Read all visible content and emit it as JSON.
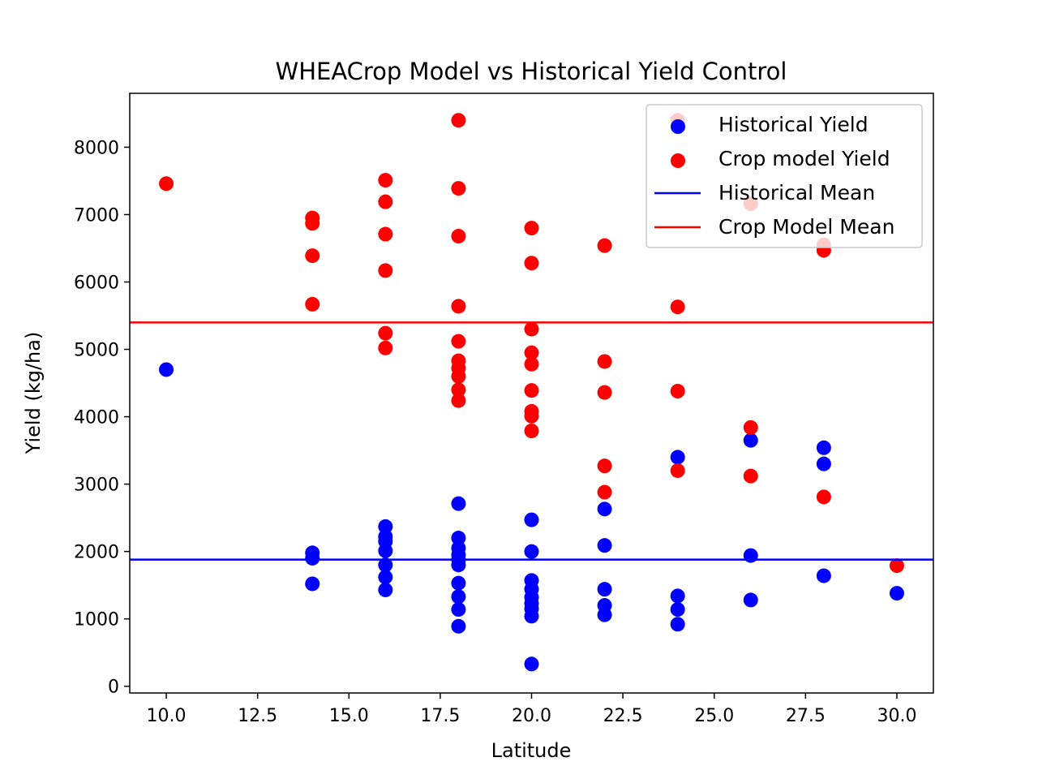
{
  "chart_data": {
    "type": "scatter",
    "title": "WHEACrop Model vs Historical Yield Control",
    "xlabel": "Latitude",
    "ylabel": "Yield (kg/ha)",
    "xlim": [
      9.0,
      31.0
    ],
    "ylim": [
      -100,
      8800
    ],
    "xticks": [
      10.0,
      12.5,
      15.0,
      17.5,
      20.0,
      22.5,
      25.0,
      27.5,
      30.0
    ],
    "xtick_labels": [
      "10.0",
      "12.5",
      "15.0",
      "17.5",
      "20.0",
      "22.5",
      "25.0",
      "27.5",
      "30.0"
    ],
    "yticks": [
      0,
      1000,
      2000,
      3000,
      4000,
      5000,
      6000,
      7000,
      8000
    ],
    "ytick_labels": [
      "0",
      "1000",
      "2000",
      "3000",
      "4000",
      "5000",
      "6000",
      "7000",
      "8000"
    ],
    "grid": false,
    "legend_position": "top-right",
    "series": [
      {
        "name": "Historical Yield",
        "kind": "scatter",
        "color": "#0000ff",
        "points": [
          [
            10,
            4700
          ],
          [
            14,
            1980
          ],
          [
            14,
            1900
          ],
          [
            14,
            1520
          ],
          [
            16,
            2370
          ],
          [
            16,
            2220
          ],
          [
            16,
            2150
          ],
          [
            16,
            2010
          ],
          [
            16,
            1800
          ],
          [
            16,
            1620
          ],
          [
            16,
            1430
          ],
          [
            18,
            2710
          ],
          [
            18,
            2200
          ],
          [
            18,
            2050
          ],
          [
            18,
            1950
          ],
          [
            18,
            1880
          ],
          [
            18,
            1800
          ],
          [
            18,
            1530
          ],
          [
            18,
            1330
          ],
          [
            18,
            1140
          ],
          [
            18,
            890
          ],
          [
            20,
            2470
          ],
          [
            20,
            2000
          ],
          [
            20,
            1570
          ],
          [
            20,
            1440
          ],
          [
            20,
            1320
          ],
          [
            20,
            1230
          ],
          [
            20,
            1150
          ],
          [
            20,
            1040
          ],
          [
            20,
            330
          ],
          [
            22,
            2630
          ],
          [
            22,
            2090
          ],
          [
            22,
            1440
          ],
          [
            22,
            1200
          ],
          [
            22,
            1060
          ],
          [
            24,
            3400
          ],
          [
            24,
            1340
          ],
          [
            24,
            1140
          ],
          [
            24,
            920
          ],
          [
            26,
            3650
          ],
          [
            26,
            1940
          ],
          [
            26,
            1280
          ],
          [
            28,
            3540
          ],
          [
            28,
            3300
          ],
          [
            28,
            1640
          ],
          [
            30,
            1380
          ]
        ]
      },
      {
        "name": "Crop model Yield",
        "kind": "scatter",
        "color": "#ff0000",
        "points": [
          [
            10,
            7460
          ],
          [
            14,
            6950
          ],
          [
            14,
            6870
          ],
          [
            14,
            6390
          ],
          [
            14,
            5670
          ],
          [
            16,
            7510
          ],
          [
            16,
            7190
          ],
          [
            16,
            6710
          ],
          [
            16,
            6170
          ],
          [
            16,
            5240
          ],
          [
            16,
            5020
          ],
          [
            18,
            8400
          ],
          [
            18,
            7390
          ],
          [
            18,
            6680
          ],
          [
            18,
            5640
          ],
          [
            18,
            5120
          ],
          [
            18,
            4830
          ],
          [
            18,
            4720
          ],
          [
            18,
            4600
          ],
          [
            18,
            4400
          ],
          [
            18,
            4240
          ],
          [
            20,
            6800
          ],
          [
            20,
            6280
          ],
          [
            20,
            5300
          ],
          [
            20,
            4950
          ],
          [
            20,
            4780
          ],
          [
            20,
            4390
          ],
          [
            20,
            4080
          ],
          [
            20,
            4010
          ],
          [
            20,
            3790
          ],
          [
            22,
            6540
          ],
          [
            22,
            4820
          ],
          [
            22,
            4360
          ],
          [
            22,
            3270
          ],
          [
            22,
            2880
          ],
          [
            24,
            8400
          ],
          [
            24,
            5630
          ],
          [
            24,
            4380
          ],
          [
            24,
            3200
          ],
          [
            26,
            7160
          ],
          [
            26,
            3840
          ],
          [
            26,
            3120
          ],
          [
            28,
            6550
          ],
          [
            28,
            6470
          ],
          [
            28,
            2810
          ],
          [
            30,
            1790
          ]
        ]
      },
      {
        "name": "Historical Mean",
        "kind": "hline",
        "color": "#0000ff",
        "value": 1880
      },
      {
        "name": "Crop Model Mean",
        "kind": "hline",
        "color": "#ff0000",
        "value": 5400
      }
    ]
  }
}
